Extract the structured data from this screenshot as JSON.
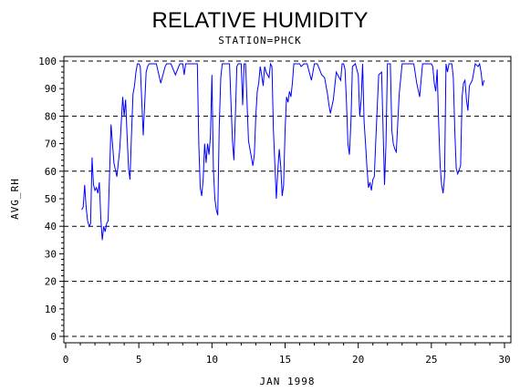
{
  "chart_data": {
    "type": "line",
    "title": "RELATIVE HUMIDITY",
    "subtitle": "STATION=PHCK",
    "xlabel": "JAN 1998",
    "ylabel": "AVG_RH",
    "xlim": [
      0,
      30
    ],
    "ylim": [
      0,
      100
    ],
    "x_ticks": [
      0,
      5,
      10,
      15,
      20,
      25,
      30
    ],
    "y_ticks": [
      0,
      10,
      20,
      30,
      40,
      50,
      60,
      70,
      80,
      90,
      100
    ],
    "grid": {
      "y_dashed_at": [
        0,
        20,
        40,
        60,
        80,
        100
      ]
    },
    "series": [
      {
        "color": "#0000ff",
        "x": [
          1.1,
          1.2,
          1.3,
          1.4,
          1.5,
          1.6,
          1.7,
          1.8,
          1.9,
          2.0,
          2.1,
          2.2,
          2.3,
          2.4,
          2.5,
          2.6,
          2.7,
          2.8,
          2.9,
          3.0,
          3.1,
          3.2,
          3.3,
          3.5,
          3.7,
          3.9,
          4.0,
          4.1,
          4.2,
          4.3,
          4.4,
          4.5,
          4.6,
          4.7,
          4.8,
          4.9,
          5.0,
          5.1,
          5.3,
          5.5,
          5.6,
          5.7,
          5.8,
          5.9,
          6.0,
          6.2,
          6.5,
          6.8,
          6.9,
          7.0,
          7.2,
          7.5,
          7.8,
          8.0,
          8.1,
          8.2,
          8.4,
          8.7,
          9.0,
          9.1,
          9.2,
          9.3,
          9.4,
          9.5,
          9.6,
          9.7,
          9.8,
          9.9,
          10.0,
          10.1,
          10.2,
          10.3,
          10.4,
          10.5,
          10.6,
          10.7,
          10.8,
          10.9,
          11.0,
          11.2,
          11.4,
          11.5,
          11.6,
          11.7,
          11.8,
          11.9,
          12.0,
          12.1,
          12.2,
          12.3,
          12.5,
          12.8,
          12.9,
          13.0,
          13.1,
          13.2,
          13.3,
          13.4,
          13.5,
          13.6,
          13.7,
          13.8,
          13.9,
          14.0,
          14.1,
          14.2,
          14.4,
          14.5,
          14.6,
          14.7,
          14.8,
          14.9,
          15.0,
          15.1,
          15.2,
          15.3,
          15.4,
          15.5,
          15.6,
          15.7,
          15.8,
          15.9,
          16.0,
          16.1,
          16.3,
          16.5,
          16.8,
          17.0,
          17.2,
          17.5,
          17.7,
          17.9,
          18.0,
          18.1,
          18.3,
          18.5,
          18.8,
          18.9,
          19.0,
          19.1,
          19.2,
          19.3,
          19.4,
          19.5,
          19.6,
          19.8,
          20.0,
          20.1,
          20.2,
          20.3,
          20.4,
          20.5,
          20.6,
          20.7,
          20.8,
          20.9,
          21.0,
          21.1,
          21.2,
          21.4,
          21.6,
          21.8,
          21.9,
          22.0,
          22.1,
          22.2,
          22.3,
          22.4,
          22.5,
          22.6,
          22.8,
          23.0,
          23.2,
          23.4,
          23.6,
          23.8,
          24.0,
          24.2,
          24.4,
          24.6,
          24.8,
          25.0,
          25.1,
          25.2,
          25.3,
          25.4,
          25.5,
          25.6,
          25.7,
          25.8,
          25.9,
          26.0,
          26.1,
          26.2,
          26.3,
          26.4,
          26.5,
          26.6,
          26.7,
          26.8,
          27.0,
          27.1,
          27.2,
          27.3,
          27.4,
          27.5,
          27.6,
          27.8,
          28.0,
          28.2,
          28.3,
          28.4,
          28.5,
          28.6
        ],
        "y": [
          46,
          47,
          55,
          47,
          42,
          40,
          41,
          65,
          55,
          53,
          54,
          52,
          56,
          43,
          35,
          40,
          38,
          41,
          42,
          59,
          77,
          70,
          63,
          58,
          68,
          87,
          80,
          86,
          73,
          61,
          57,
          73,
          88,
          91,
          96,
          99,
          99,
          98,
          73,
          96,
          98,
          99,
          99,
          99,
          99,
          99,
          92,
          98,
          99,
          99,
          99,
          95,
          99,
          99,
          95,
          99,
          99,
          99,
          99,
          70,
          54,
          51,
          57,
          70,
          63,
          70,
          66,
          73,
          95,
          61,
          50,
          46,
          44,
          76,
          94,
          99,
          99,
          99,
          99,
          99,
          71,
          64,
          80,
          98,
          99,
          99,
          99,
          84,
          99,
          99,
          71,
          62,
          66,
          80,
          89,
          92,
          98,
          95,
          91,
          98,
          96,
          95,
          94,
          99,
          98,
          75,
          50,
          60,
          68,
          62,
          51,
          55,
          75,
          87,
          85,
          89,
          87,
          92,
          99,
          99,
          99,
          99,
          99,
          98,
          99,
          99,
          93,
          99,
          99,
          95,
          94,
          88,
          84,
          81,
          86,
          96,
          93,
          99,
          99,
          97,
          85,
          70,
          66,
          78,
          98,
          99,
          95,
          80,
          86,
          99,
          78,
          70,
          61,
          54,
          56,
          53,
          57,
          58,
          71,
          95,
          96,
          55,
          70,
          99,
          99,
          99,
          75,
          70,
          68,
          67,
          88,
          99,
          99,
          99,
          99,
          99,
          92,
          87,
          99,
          99,
          99,
          99,
          98,
          92,
          89,
          97,
          78,
          62,
          55,
          52,
          58,
          99,
          96,
          99,
          99,
          99,
          94,
          75,
          61,
          59,
          62,
          87,
          92,
          93,
          86,
          82,
          91,
          93,
          99,
          98,
          99,
          96,
          91,
          93
        ]
      }
    ]
  }
}
